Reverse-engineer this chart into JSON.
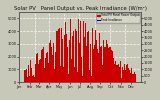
{
  "title": "Solar PV   Panel Output vs. Peak Irradiance (W/m²)",
  "bg_color": "#c8c8b8",
  "plot_bg": "#c8c8b8",
  "fill_color": "#cc0000",
  "line_color": "#cc0000",
  "grid_color": "#ffffff",
  "ylim": [
    0,
    5500
  ],
  "num_points": 365,
  "legend_entries": [
    "Total PV Panel Power Output",
    "Peak Irradiance"
  ],
  "legend_colors": [
    "#cc0000",
    "#0000cc"
  ],
  "title_fontsize": 3.8,
  "axis_fontsize": 2.5,
  "right_yticks": [
    0,
    500,
    1000,
    1500,
    2000,
    2500,
    3000,
    3500,
    4000,
    4500,
    5000
  ],
  "left_yticks": [
    0,
    1000,
    2000,
    3000,
    4000,
    5000
  ],
  "vlines": [
    46,
    90,
    135,
    180,
    227,
    272,
    318
  ],
  "hlines": [
    1000,
    2000,
    3000,
    4000,
    5000
  ]
}
